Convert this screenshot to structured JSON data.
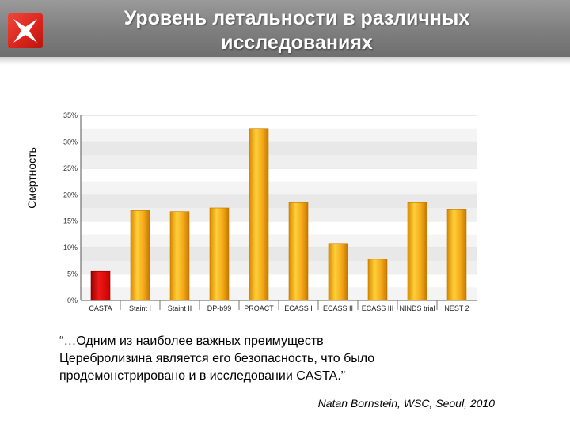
{
  "title_line1": "Уровень летальности в различных",
  "title_line2": "исследованиях",
  "logo_icon": "red-star-logo-icon",
  "quote": {
    "line1": "“…Одним  из  наиболее  важных  преимуществ",
    "line2": "Церебролизина  является  его безопасность, что было",
    "line3": "продемонстрировано и в исследовании CASTA.”",
    "attribution": "Natan Bornstein, WSC, Seoul, 2010"
  },
  "colors": {
    "highlight_bar": "#cc0000",
    "bar": "#f2a818",
    "grid_band": "#e8e8e8"
  },
  "chart_data": {
    "type": "bar",
    "ylabel": "Смертность",
    "xlabel": "",
    "categories": [
      "CASTA",
      "Staint I",
      "Staint II",
      "DP-b99",
      "PROACT",
      "ECASS I",
      "ECASS II",
      "ECASS III",
      "NINDS trial",
      "NEST 2"
    ],
    "values": [
      5.5,
      17,
      16.8,
      17.5,
      32.5,
      18.5,
      10.8,
      7.8,
      18.5,
      17.3
    ],
    "highlight": "CASTA",
    "ylim": [
      0,
      35
    ],
    "yticks": [
      "0%",
      "5%",
      "10%",
      "15%",
      "20%",
      "25%",
      "30%",
      "35%"
    ],
    "grid": true
  }
}
